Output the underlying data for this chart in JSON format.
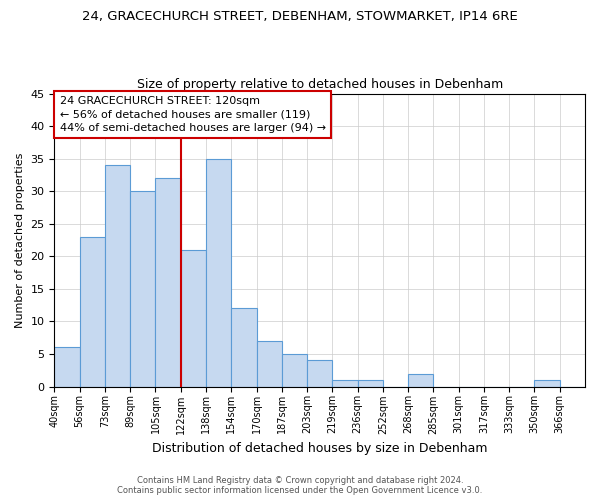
{
  "title": "24, GRACECHURCH STREET, DEBENHAM, STOWMARKET, IP14 6RE",
  "subtitle": "Size of property relative to detached houses in Debenham",
  "xlabel": "Distribution of detached houses by size in Debenham",
  "ylabel": "Number of detached properties",
  "bin_labels": [
    "40sqm",
    "56sqm",
    "73sqm",
    "89sqm",
    "105sqm",
    "122sqm",
    "138sqm",
    "154sqm",
    "170sqm",
    "187sqm",
    "203sqm",
    "219sqm",
    "236sqm",
    "252sqm",
    "268sqm",
    "285sqm",
    "301sqm",
    "317sqm",
    "333sqm",
    "350sqm",
    "366sqm"
  ],
  "bar_values": [
    6,
    23,
    34,
    30,
    32,
    21,
    35,
    12,
    7,
    5,
    4,
    1,
    1,
    0,
    2,
    0,
    0,
    0,
    0,
    1,
    0
  ],
  "bar_color": "#c6d9f0",
  "bar_edge_color": "#5b9bd5",
  "ylim": [
    0,
    45
  ],
  "yticks": [
    0,
    5,
    10,
    15,
    20,
    25,
    30,
    35,
    40,
    45
  ],
  "annotation_title": "24 GRACECHURCH STREET: 120sqm",
  "annotation_line1": "← 56% of detached houses are smaller (119)",
  "annotation_line2": "44% of semi-detached houses are larger (94) →",
  "annotation_box_color": "#ffffff",
  "annotation_box_edge": "#cc0000",
  "vline_color": "#cc0000",
  "footer_line1": "Contains HM Land Registry data © Crown copyright and database right 2024.",
  "footer_line2": "Contains public sector information licensed under the Open Government Licence v3.0.",
  "background_color": "#ffffff",
  "grid_color": "#cccccc",
  "vline_index": 5
}
